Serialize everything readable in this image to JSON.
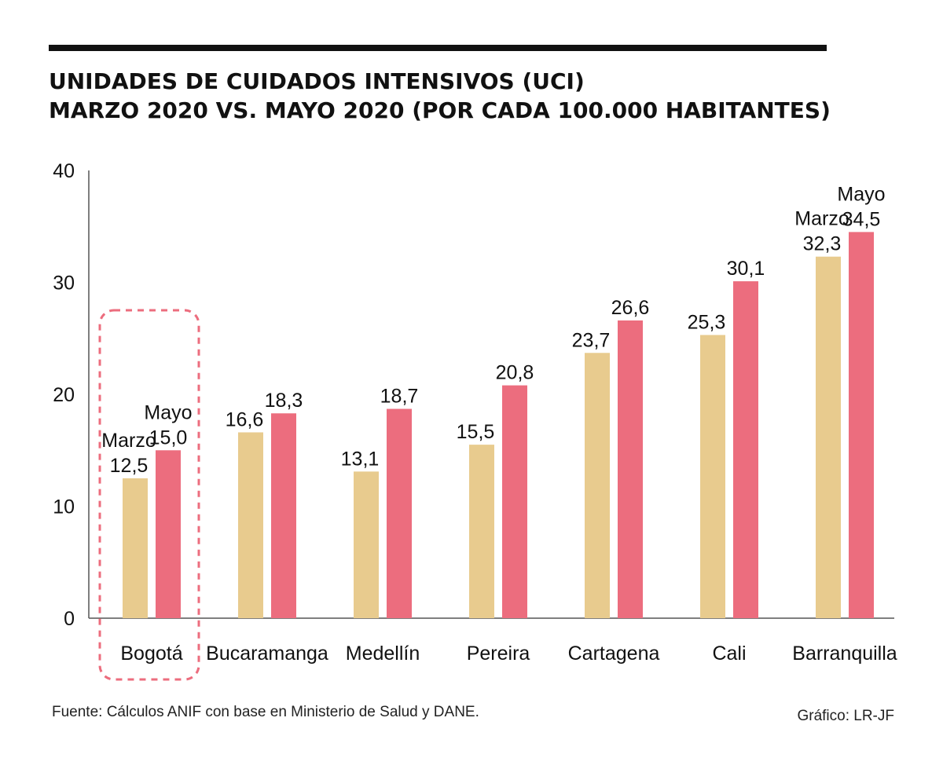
{
  "chart_data": {
    "type": "bar",
    "title": [
      "UNIDADES DE CUIDADOS INTENSIVOS (UCI)",
      "MARZO 2020 VS. MAYO 2020 (POR CADA 100.000 HABITANTES)"
    ],
    "categories": [
      "Bogotá",
      "Bucaramanga",
      "Medellín",
      "Pereira",
      "Cartagena",
      "Cali",
      "Barranquilla"
    ],
    "series": [
      {
        "name": "Marzo",
        "color": "#E8CB8E",
        "values": [
          12.5,
          16.6,
          13.1,
          15.5,
          23.7,
          25.3,
          32.3
        ],
        "labels": [
          "12,5",
          "16,6",
          "13,1",
          "15,5",
          "23,7",
          "25,3",
          "32,3"
        ]
      },
      {
        "name": "Mayo",
        "color": "#EC6D7E",
        "values": [
          15.0,
          18.3,
          18.7,
          20.8,
          26.6,
          30.1,
          34.5
        ],
        "labels": [
          "15,0",
          "18,3",
          "18,7",
          "20,8",
          "26,6",
          "30,1",
          "34,5"
        ]
      }
    ],
    "yticks": [
      "0",
      "10",
      "20",
      "30",
      "40"
    ],
    "ylim": [
      0,
      40
    ],
    "grid": false,
    "highlight": {
      "category": "Bogotá",
      "color": "#EC6D7E",
      "style": "dashed-rounded-box"
    },
    "source": "Fuente: Cálculos ANIF con base en Ministerio de Salud y DANE.",
    "credit": "Gráfico: LR-JF"
  }
}
